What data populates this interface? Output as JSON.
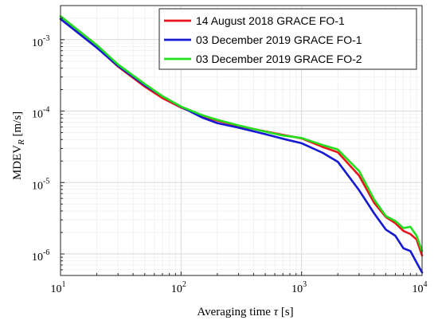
{
  "chart_data": {
    "type": "line",
    "scale": {
      "x": "log",
      "y": "log"
    },
    "xlim": [
      10,
      10000
    ],
    "ylim": [
      5e-07,
      0.003
    ],
    "grid": true,
    "legend_position": "top-right",
    "xlabel_parts": {
      "main": "Averaging time ",
      "symbol": "τ",
      "unit": " [s]"
    },
    "ylabel_parts": {
      "main": "MDEV",
      "sub": "R",
      "unit": " [m/s]"
    },
    "x_ticks": [
      {
        "value": 10,
        "base": "10",
        "exp": "1"
      },
      {
        "value": 100,
        "base": "10",
        "exp": "2"
      },
      {
        "value": 1000,
        "base": "10",
        "exp": "3"
      },
      {
        "value": 10000,
        "base": "10",
        "exp": "4"
      }
    ],
    "y_ticks": [
      {
        "value": 1e-06,
        "base": "10",
        "exp": "-6"
      },
      {
        "value": 1e-05,
        "base": "10",
        "exp": "-5"
      },
      {
        "value": 0.0001,
        "base": "10",
        "exp": "-4"
      },
      {
        "value": 0.001,
        "base": "10",
        "exp": "-3"
      }
    ],
    "series": [
      {
        "name": "14 August 2018 GRACE FO-1",
        "color": "#e8141b",
        "x": [
          10,
          20,
          30,
          50,
          70,
          100,
          150,
          200,
          300,
          500,
          700,
          1000,
          1500,
          2000,
          3000,
          4000,
          5000,
          6000,
          7000,
          8000,
          9000,
          10000
        ],
        "y": [
          0.00195,
          0.00078,
          0.00042,
          0.00022,
          0.000152,
          0.000112,
          8.55e-05,
          7.35e-05,
          6.2e-05,
          5.2e-05,
          4.65e-05,
          4.15e-05,
          3.15e-05,
          2.65e-05,
          1.25e-05,
          5.2e-06,
          3.3e-06,
          2.7e-06,
          2.1e-06,
          1.9e-06,
          1.6e-06,
          9.5e-07
        ]
      },
      {
        "name": "03 December 2019 GRACE FO-1",
        "color": "#1519d2",
        "x": [
          10,
          20,
          30,
          50,
          70,
          100,
          150,
          200,
          300,
          500,
          700,
          1000,
          1500,
          2000,
          3000,
          4000,
          5000,
          6000,
          7000,
          8000,
          9000,
          10000
        ],
        "y": [
          0.00195,
          0.00077,
          0.00043,
          0.00023,
          0.000162,
          0.000115,
          8.1e-05,
          6.8e-05,
          5.85e-05,
          4.75e-05,
          4.1e-05,
          3.55e-05,
          2.6e-05,
          1.95e-05,
          7.8e-06,
          3.7e-06,
          2.2e-06,
          1.8e-06,
          1.2e-06,
          1.1e-06,
          7.6e-07,
          5.5e-07
        ]
      },
      {
        "name": "03 December 2019 GRACE FO-2",
        "color": "#22e01e",
        "x": [
          10,
          20,
          30,
          50,
          70,
          100,
          150,
          200,
          300,
          500,
          700,
          1000,
          1500,
          2000,
          3000,
          4000,
          5000,
          6000,
          7000,
          8000,
          9000,
          10000
        ],
        "y": [
          0.00213,
          0.00084,
          0.00045,
          0.00024,
          0.000162,
          0.000116,
          8.75e-05,
          7.55e-05,
          6.3e-05,
          5.15e-05,
          4.55e-05,
          4.2e-05,
          3.35e-05,
          2.9e-05,
          1.45e-05,
          5.8e-06,
          3.4e-06,
          2.9e-06,
          2.3e-06,
          2.4e-06,
          1.8e-06,
          1.1e-06
        ]
      }
    ]
  }
}
